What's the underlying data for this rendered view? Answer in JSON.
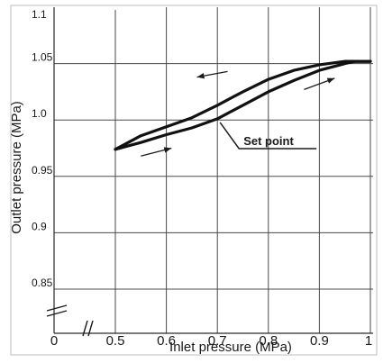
{
  "chart_data": {
    "type": "line",
    "title": "",
    "xlabel": "Inlet pressure (MPa)",
    "ylabel": "Outlet pressure (MPa)",
    "xlim": [
      0.5,
      1.0
    ],
    "ylim": [
      0.85,
      1.1
    ],
    "x_ticks": [
      "0",
      "0.5",
      "0.6",
      "0.7",
      "0.8",
      "0.9",
      "1"
    ],
    "y_ticks": [
      "0.85",
      "0.9",
      "0.95",
      "1.0",
      "1.05",
      "1.1"
    ],
    "grid": true,
    "axis_breaks": true,
    "series": [
      {
        "x": [
          0.5,
          0.55,
          0.6,
          0.65,
          0.7,
          0.75,
          0.8,
          0.85,
          0.9,
          0.95,
          0.97,
          1.0
        ],
        "y": [
          0.974,
          0.98,
          0.987,
          0.993,
          1.001,
          1.013,
          1.025,
          1.035,
          1.044,
          1.05,
          1.052,
          1.052
        ]
      },
      {
        "x": [
          0.5,
          0.55,
          0.6,
          0.65,
          0.7,
          0.75,
          0.8,
          0.85,
          0.9,
          0.95,
          0.97,
          1.0
        ],
        "y": [
          0.974,
          0.986,
          0.994,
          1.002,
          1.013,
          1.025,
          1.036,
          1.044,
          1.049,
          1.052,
          1.052,
          1.052
        ]
      }
    ],
    "annotations": [
      {
        "text": "Set point",
        "x": 0.7,
        "y": 1.001
      }
    ],
    "direction_arrows": [
      {
        "x1": 0.72,
        "y1": 1.043,
        "x2": 0.66,
        "y2": 1.038
      },
      {
        "x1": 0.87,
        "y1": 1.027,
        "x2": 0.93,
        "y2": 1.037
      },
      {
        "x1": 0.55,
        "y1": 0.968,
        "x2": 0.61,
        "y2": 0.975
      }
    ]
  }
}
